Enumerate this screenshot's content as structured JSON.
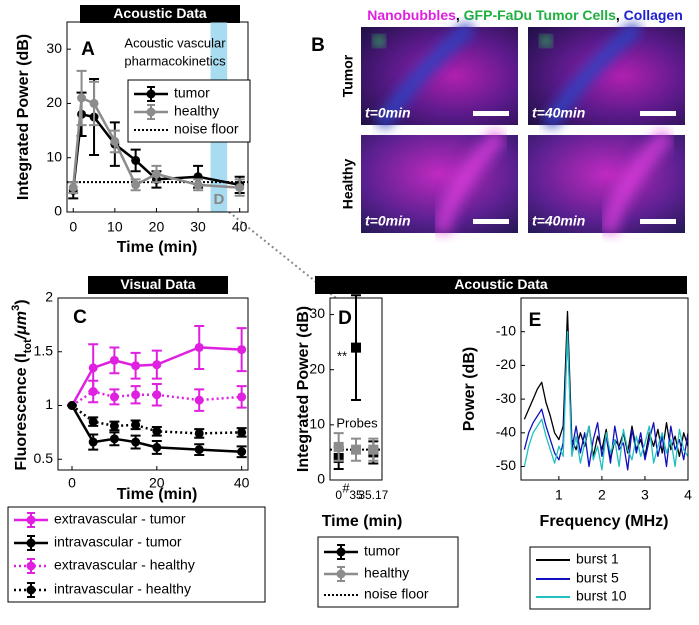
{
  "chart_data": [
    {
      "type": "line",
      "panel": "A",
      "banner": "Acoustic Data",
      "annotations": [
        "Acoustic vascular",
        "pharmacokinetics"
      ],
      "xlabel": "Time (min)",
      "ylabel": "Integrated Power (dB)",
      "x": [
        0,
        2,
        5,
        10,
        15,
        20,
        30,
        40
      ],
      "xlim": [
        -1.5,
        42
      ],
      "xticks": [
        0,
        10,
        20,
        30,
        40
      ],
      "ylim": [
        0,
        35
      ],
      "yticks": [
        0,
        10,
        20,
        30
      ],
      "series": [
        {
          "name": "tumor",
          "color": "#000000",
          "marker": "circle",
          "dash": "solid",
          "values": [
            4,
            18,
            17.5,
            12.5,
            9.5,
            6,
            6.5,
            5
          ],
          "errors": [
            1.5,
            4,
            7,
            4,
            2,
            1.5,
            2,
            1.5
          ]
        },
        {
          "name": "healthy",
          "color": "#8c8c8c",
          "marker": "circle",
          "dash": "solid",
          "values": [
            4.5,
            21,
            20,
            13,
            5,
            7,
            5,
            4.5
          ],
          "errors": [
            1,
            5,
            4,
            2,
            1,
            1.5,
            1,
            1.5
          ]
        }
      ],
      "reference_line": {
        "name": "noise floor",
        "value": 5.5
      },
      "highlight": {
        "label": "D",
        "x": [
          33,
          37
        ],
        "color": "#a8dcf0"
      }
    },
    {
      "type": "image_grid",
      "panel": "B",
      "title_parts": [
        {
          "text": "Nanobubbles",
          "color": "#e020e0"
        },
        {
          "text": ", ",
          "color": "#000000"
        },
        {
          "text": "GFP-FaDu Tumor Cells",
          "color": "#20b040"
        },
        {
          "text": ", ",
          "color": "#000000"
        },
        {
          "text": "Collagen",
          "color": "#2020d0"
        }
      ],
      "rows": [
        "Tumor",
        "Healthy"
      ],
      "cells": [
        [
          "t=0min",
          "t=40min"
        ],
        [
          "t=0min",
          "t=40min"
        ]
      ]
    },
    {
      "type": "line",
      "panel": "C",
      "banner": "Visual Data",
      "xlabel": "Time (min)",
      "ylabel_parts": [
        "Fluorescence (I",
        "tot",
        "/μm",
        "3",
        ")"
      ],
      "x": [
        0,
        5,
        10,
        15,
        20,
        30,
        40
      ],
      "xlim": [
        -3.3,
        41.5
      ],
      "xticks": [
        0,
        20,
        40
      ],
      "ylim": [
        0.4,
        2
      ],
      "yticks": [
        0.5,
        1,
        1.5,
        2
      ],
      "series": [
        {
          "name": "extravascular - tumor",
          "color": "#e020e0",
          "marker": "circle",
          "dash": "solid",
          "values": [
            1,
            1.35,
            1.42,
            1.37,
            1.38,
            1.54,
            1.52
          ],
          "errors": [
            0,
            0.22,
            0.12,
            0.12,
            0.13,
            0.2,
            0.2
          ]
        },
        {
          "name": "intravascular - tumor",
          "color": "#000000",
          "marker": "circle",
          "dash": "solid",
          "values": [
            1,
            0.66,
            0.69,
            0.66,
            0.61,
            0.59,
            0.57
          ],
          "errors": [
            0,
            0.07,
            0.06,
            0.06,
            0.06,
            0.05,
            0.05
          ]
        },
        {
          "name": "extravascular - healthy",
          "color": "#e020e0",
          "marker": "circle",
          "dash": "dotted",
          "values": [
            1,
            1.13,
            1.08,
            1.1,
            1.1,
            1.05,
            1.08
          ],
          "errors": [
            0,
            0.1,
            0.07,
            0.08,
            0.1,
            0.1,
            0.1
          ]
        },
        {
          "name": "intravascular - healthy",
          "color": "#000000",
          "marker": "circle",
          "dash": "dotted",
          "values": [
            1,
            0.85,
            0.81,
            0.82,
            0.76,
            0.74,
            0.75
          ],
          "errors": [
            0,
            0.04,
            0.04,
            0.04,
            0.04,
            0.04,
            0.04
          ]
        }
      ]
    },
    {
      "type": "dot",
      "panel": "D",
      "banner": "Acoustic Data",
      "annotations": [
        "**",
        "#",
        "Probes"
      ],
      "xlabel": "Time (min)",
      "ylabel": "Integrated Power (dB)",
      "categories": [
        "0",
        "35",
        "35.17"
      ],
      "ylim": [
        0,
        33
      ],
      "yticks": [
        0,
        10,
        20,
        30
      ],
      "series": [
        {
          "name": "tumor",
          "color": "#000000",
          "marker": "square",
          "dash": "solid",
          "values": [
            4,
            24,
            5
          ],
          "errors": [
            2,
            9.5,
            2
          ]
        },
        {
          "name": "healthy",
          "color": "#8c8c8c",
          "marker": "square",
          "dash": "solid",
          "values": [
            6,
            5.5,
            5.5
          ],
          "errors": [
            2.5,
            2,
            2
          ]
        }
      ],
      "reference_line": {
        "name": "noise floor",
        "value": 5.5
      }
    },
    {
      "type": "line",
      "panel": "E",
      "xlabel": "Frequency (MHz)",
      "ylabel": "Power (dB)",
      "x": [
        0.2,
        0.3,
        0.4,
        0.5,
        0.6,
        0.7,
        0.8,
        0.9,
        1.0,
        1.1,
        1.2,
        1.3,
        1.4,
        1.5,
        1.6,
        1.7,
        1.8,
        1.9,
        2.0,
        2.1,
        2.2,
        2.3,
        2.4,
        2.5,
        2.6,
        2.7,
        2.8,
        2.9,
        3.0,
        3.1,
        3.2,
        3.3,
        3.4,
        3.5,
        3.6,
        3.7,
        3.8,
        3.9,
        4.0
      ],
      "xlim": [
        0.12,
        4
      ],
      "xticks": [
        1,
        2,
        3,
        4
      ],
      "ylim": [
        -54,
        0
      ],
      "yticks": [
        -50,
        -40,
        -30,
        -20,
        -10
      ],
      "series": [
        {
          "name": "burst 1",
          "color": "#000000",
          "dash": "solid",
          "values": [
            -36,
            -33,
            -30,
            -27,
            -25,
            -31,
            -35,
            -40,
            -42,
            -38,
            -4,
            -42,
            -45,
            -40,
            -44,
            -38,
            -47,
            -41,
            -45,
            -39,
            -48,
            -42,
            -44,
            -40,
            -46,
            -38,
            -45,
            -42,
            -47,
            -40,
            -44,
            -39,
            -46,
            -37,
            -45,
            -41,
            -47,
            -40,
            -44
          ]
        },
        {
          "name": "burst 5",
          "color": "#1010c0",
          "dash": "solid",
          "values": [
            -45,
            -40,
            -37,
            -35,
            -33,
            -38,
            -42,
            -46,
            -48,
            -43,
            -10,
            -45,
            -38,
            -46,
            -40,
            -50,
            -42,
            -37,
            -47,
            -41,
            -49,
            -38,
            -45,
            -43,
            -51,
            -39,
            -46,
            -40,
            -48,
            -42,
            -37,
            -47,
            -41,
            -50,
            -38,
            -45,
            -42,
            -48,
            -40
          ]
        },
        {
          "name": "burst 10",
          "color": "#20c0c0",
          "dash": "solid",
          "values": [
            -50,
            -44,
            -40,
            -38,
            -36,
            -41,
            -45,
            -49,
            -44,
            -47,
            -10,
            -47,
            -41,
            -49,
            -43,
            -38,
            -48,
            -44,
            -51,
            -40,
            -46,
            -42,
            -50,
            -39,
            -45,
            -48,
            -41,
            -47,
            -43,
            -38,
            -49,
            -44,
            -40,
            -46,
            -42,
            -50,
            -39,
            -45,
            -47
          ]
        }
      ]
    }
  ]
}
